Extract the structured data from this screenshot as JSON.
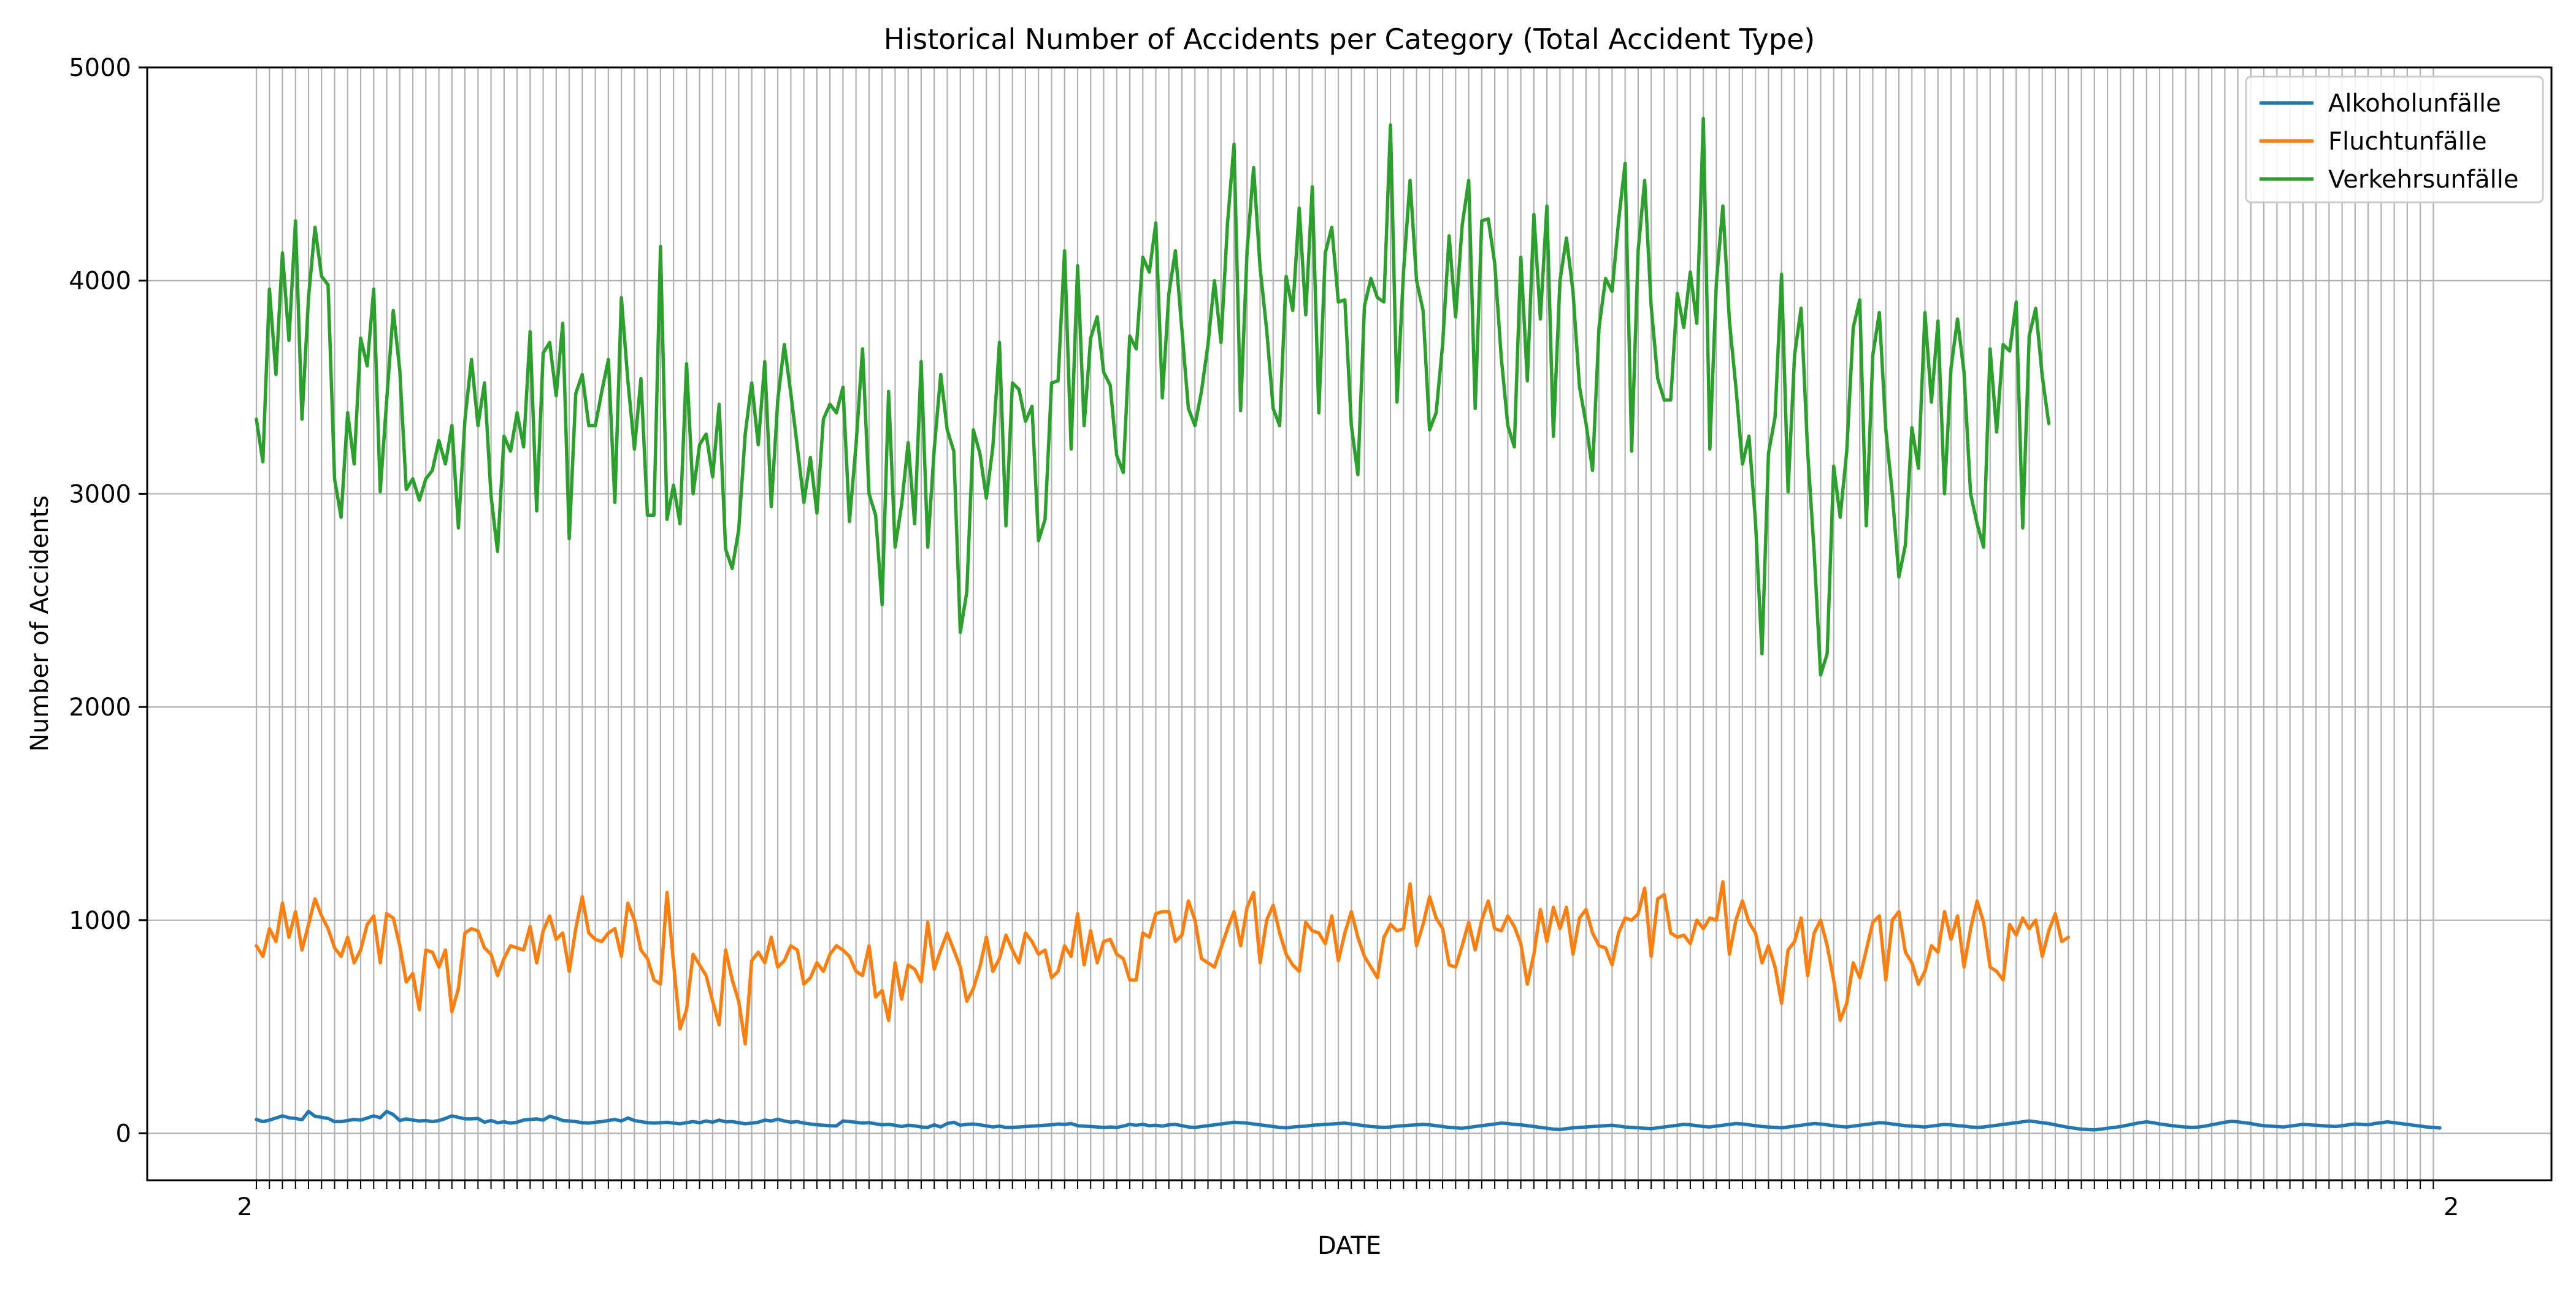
{
  "chart_data": {
    "type": "line",
    "title": "Historical Number of Accidents per Category (Total Accident Type)",
    "xlabel": "DATE",
    "ylabel": "Number of Accidents",
    "ylim": [
      -220,
      5000
    ],
    "yticks": [
      0,
      1000,
      2000,
      3000,
      4000,
      5000
    ],
    "grid": true,
    "legend_position": "top-right",
    "x_start_label": "2",
    "x_end_label": "2",
    "x_tick_labels_overlap": true,
    "series": [
      {
        "name": "Alkoholunfälle",
        "color": "#1f77b4",
        "values": [
          65,
          55,
          62,
          72,
          82,
          73,
          70,
          64,
          103,
          80,
          75,
          70,
          55,
          55,
          60,
          65,
          62,
          72,
          82,
          73,
          103,
          88,
          60,
          68,
          62,
          58,
          60,
          55,
          60,
          70,
          82,
          75,
          68,
          68,
          70,
          52,
          60,
          50,
          54,
          48,
          52,
          62,
          65,
          68,
          62,
          80,
          72,
          60,
          58,
          55,
          50,
          48,
          52,
          55,
          60,
          65,
          58,
          72,
          60,
          55,
          50,
          48,
          50,
          52,
          48,
          45,
          50,
          55,
          50,
          58,
          52,
          62,
          54,
          55,
          50,
          45,
          48,
          52,
          62,
          58,
          66,
          58,
          52,
          55,
          48,
          44,
          40,
          38,
          36,
          35,
          58,
          55,
          52,
          48,
          50,
          45,
          40,
          42,
          38,
          32,
          38,
          35,
          30,
          28,
          40,
          30,
          46,
          52,
          38,
          42,
          44,
          40,
          35,
          30,
          34,
          28,
          28,
          30,
          32,
          34,
          36,
          38,
          40,
          44,
          42,
          46,
          36,
          34,
          32,
          30,
          28,
          30,
          28,
          34,
          42,
          38,
          42,
          36,
          38,
          34,
          40,
          42,
          36,
          30,
          28,
          32,
          36,
          40,
          44,
          48,
          52,
          50,
          48,
          44,
          40,
          36,
          32,
          28,
          26,
          30,
          32,
          34,
          38,
          40,
          42,
          44,
          46,
          48,
          44,
          40,
          36,
          32,
          30,
          28,
          30,
          34,
          36,
          38,
          40,
          42,
          40,
          36,
          32,
          28,
          26,
          24,
          28,
          32,
          36,
          40,
          44,
          48,
          46,
          42,
          40,
          36,
          32,
          28,
          24,
          20,
          18,
          22,
          26,
          28,
          30,
          32,
          34,
          36,
          38,
          34,
          30,
          28,
          26,
          24,
          22,
          26,
          30,
          34,
          38,
          42,
          40,
          36,
          32,
          30,
          34,
          38,
          42,
          46,
          44,
          40,
          36,
          32,
          30,
          28,
          26,
          30,
          34,
          38,
          42,
          46,
          44,
          40,
          36,
          32,
          30,
          34,
          38,
          42,
          46,
          50,
          48,
          44,
          40,
          36,
          34,
          32,
          30,
          34,
          38,
          42,
          40,
          36,
          34,
          30,
          28,
          30,
          34,
          38,
          42,
          46,
          50,
          54,
          58,
          54,
          50,
          46,
          40,
          34,
          28,
          24,
          20,
          18,
          16,
          20,
          24,
          28,
          32,
          38,
          44,
          50,
          54,
          50,
          44,
          40,
          36,
          32,
          30,
          28,
          30,
          34,
          40,
          46,
          52,
          56,
          54,
          50,
          46,
          40,
          36,
          34,
          32,
          30,
          34,
          38,
          42,
          40,
          38,
          36,
          34,
          32,
          36,
          40,
          44,
          42,
          40,
          46,
          50,
          54,
          50,
          46,
          42,
          38,
          34,
          30,
          28,
          25
        ]
      },
      {
        "name": "Fluchtunfälle",
        "color": "#ff7f0e",
        "values": [
          880,
          830,
          960,
          900,
          1080,
          920,
          1040,
          860,
          980,
          1100,
          1020,
          960,
          870,
          830,
          920,
          800,
          860,
          980,
          1020,
          800,
          1030,
          1010,
          880,
          710,
          750,
          580,
          860,
          850,
          780,
          860,
          570,
          680,
          940,
          960,
          950,
          870,
          840,
          740,
          820,
          880,
          870,
          860,
          970,
          800,
          950,
          1020,
          910,
          940,
          760,
          960,
          1110,
          940,
          910,
          900,
          940,
          960,
          830,
          1080,
          1000,
          860,
          820,
          720,
          700,
          1130,
          800,
          490,
          580,
          840,
          790,
          740,
          620,
          510,
          860,
          720,
          620,
          420,
          810,
          850,
          800,
          920,
          780,
          810,
          880,
          860,
          700,
          730,
          800,
          760,
          840,
          880,
          860,
          830,
          760,
          740,
          880,
          640,
          670,
          530,
          800,
          630,
          790,
          770,
          710,
          990,
          770,
          860,
          940,
          860,
          780,
          620,
          680,
          780,
          920,
          760,
          820,
          930,
          860,
          800,
          940,
          900,
          840,
          860,
          730,
          760,
          880,
          830,
          1030,
          790,
          950,
          800,
          900,
          910,
          840,
          820,
          720,
          720,
          940,
          920,
          1030,
          1040,
          1040,
          900,
          930,
          1090,
          1000,
          820,
          800,
          780,
          870,
          960,
          1040,
          880,
          1060,
          1130,
          800,
          1000,
          1070,
          940,
          840,
          790,
          760,
          990,
          950,
          940,
          890,
          1020,
          810,
          940,
          1040,
          920,
          830,
          780,
          730,
          920,
          980,
          950,
          960,
          1170,
          880,
          980,
          1110,
          1010,
          960,
          790,
          780,
          880,
          990,
          860,
          1000,
          1090,
          960,
          950,
          1020,
          970,
          890,
          700,
          840,
          1050,
          900,
          1060,
          960,
          1060,
          840,
          1010,
          1050,
          940,
          880,
          870,
          790,
          940,
          1010,
          1000,
          1030,
          1150,
          830,
          1100,
          1120,
          940,
          920,
          930,
          890,
          1000,
          960,
          1010,
          1000,
          1180,
          840,
          1000,
          1090,
          990,
          940,
          800,
          880,
          780,
          610,
          860,
          900,
          1010,
          740,
          940,
          1000,
          880,
          720,
          530,
          610,
          800,
          730,
          860,
          990,
          1020,
          720,
          1000,
          1040,
          850,
          800,
          700,
          760,
          880,
          850,
          1040,
          910,
          1020,
          780,
          960,
          1090,
          990,
          780,
          760,
          720,
          980,
          930,
          1010,
          960,
          1000,
          830,
          950,
          1030,
          900,
          920
        ]
      },
      {
        "name": "Verkehrsunfälle",
        "color": "#2ca02c",
        "values": [
          3350,
          3150,
          3960,
          3560,
          4130,
          3720,
          4280,
          3350,
          3920,
          4250,
          4020,
          3980,
          3070,
          2890,
          3380,
          3140,
          3730,
          3600,
          3960,
          3010,
          3440,
          3860,
          3580,
          3020,
          3070,
          2970,
          3070,
          3110,
          3250,
          3140,
          3320,
          2840,
          3350,
          3630,
          3320,
          3520,
          2990,
          2730,
          3270,
          3200,
          3380,
          3220,
          3760,
          2920,
          3660,
          3710,
          3460,
          3800,
          2790,
          3470,
          3560,
          3320,
          3320,
          3480,
          3630,
          2960,
          3920,
          3530,
          3210,
          3540,
          2900,
          2900,
          4160,
          2880,
          3040,
          2860,
          3610,
          3000,
          3230,
          3280,
          3080,
          3420,
          2740,
          2650,
          2830,
          3280,
          3520,
          3230,
          3620,
          2940,
          3440,
          3700,
          3470,
          3220,
          2960,
          3170,
          2910,
          3350,
          3420,
          3380,
          3500,
          2870,
          3230,
          3680,
          3000,
          2900,
          2480,
          3480,
          2750,
          2950,
          3240,
          2860,
          3620,
          2750,
          3210,
          3560,
          3300,
          3200,
          2350,
          2540,
          3300,
          3190,
          2980,
          3220,
          3710,
          2850,
          3520,
          3490,
          3340,
          3410,
          2780,
          2880,
          3520,
          3530,
          4140,
          3210,
          4070,
          3320,
          3730,
          3830,
          3570,
          3510,
          3180,
          3100,
          3740,
          3680,
          4110,
          4040,
          4270,
          3450,
          3940,
          4140,
          3770,
          3400,
          3320,
          3480,
          3700,
          4000,
          3710,
          4270,
          4640,
          3390,
          4140,
          4530,
          4060,
          3770,
          3400,
          3320,
          4020,
          3860,
          4340,
          3840,
          4440,
          3380,
          4130,
          4250,
          3900,
          3910,
          3320,
          3090,
          3880,
          4010,
          3920,
          3900,
          4730,
          3430,
          4040,
          4470,
          4000,
          3860,
          3300,
          3380,
          3700,
          4210,
          3830,
          4260,
          4470,
          3400,
          4280,
          4290,
          4080,
          3640,
          3320,
          3220,
          4110,
          3530,
          4310,
          3820,
          4350,
          3270,
          4000,
          4200,
          3950,
          3500,
          3330,
          3110,
          3780,
          4010,
          3950,
          4280,
          4550,
          3200,
          4140,
          4470,
          3880,
          3540,
          3440,
          3440,
          3940,
          3780,
          4040,
          3800,
          4760,
          3210,
          3990,
          4350,
          3810,
          3500,
          3140,
          3270,
          2870,
          2250,
          3190,
          3360,
          4030,
          3010,
          3650,
          3870,
          3200,
          2730,
          2150,
          2250,
          3130,
          2890,
          3200,
          3780,
          3910,
          2850,
          3650,
          3850,
          3300,
          3000,
          2610,
          2760,
          3310,
          3120,
          3850,
          3430,
          3810,
          3000,
          3590,
          3820,
          3570,
          3000,
          2860,
          2750,
          3680,
          3290,
          3700,
          3670,
          3900,
          2840,
          3740,
          3870,
          3550,
          3330
        ]
      }
    ]
  }
}
